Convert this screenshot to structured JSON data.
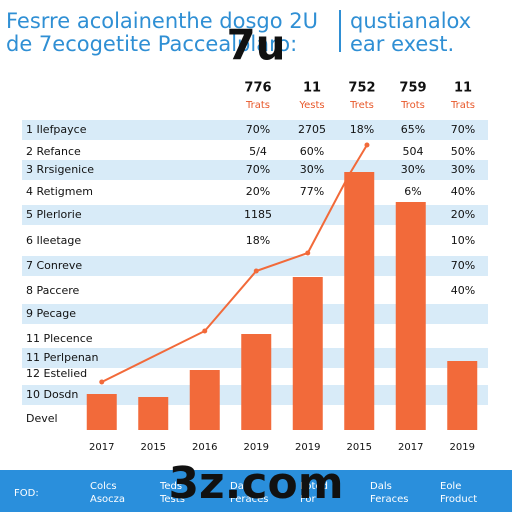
{
  "header": {
    "line1": [
      "Fesrre acolainenthe dosgo 2U",
      "qustianalox"
    ],
    "line2": [
      "de 7ecogetite Paccealplaro:",
      "ear exest."
    ],
    "badge": "7u"
  },
  "table": {
    "columns": [
      "776",
      "11",
      "752",
      "759",
      "11"
    ],
    "subcolumns": [
      "Trats",
      "Yests",
      "Trets",
      "Trots",
      "Trats"
    ],
    "rows": [
      {
        "label": "1  Ilefpayce",
        "cells": [
          "70%",
          "2705",
          "18%",
          "65%",
          "70%"
        ]
      },
      {
        "label": "2  Refance",
        "cells": [
          "5/4",
          "60%",
          null,
          "504",
          "50%"
        ]
      },
      {
        "label": "3  Rrsigenice",
        "cells": [
          "70%",
          "30%",
          null,
          "30%",
          "30%"
        ]
      },
      {
        "label": "4  Retigmem",
        "cells": [
          "20%",
          "77%",
          null,
          "6%",
          "40%"
        ]
      },
      {
        "label": "5  Plerlorie",
        "cells": [
          "1185",
          null,
          null,
          null,
          "20%"
        ]
      },
      {
        "label": "6  Ileetage",
        "cells": [
          "18%",
          null,
          null,
          null,
          "10%"
        ]
      },
      {
        "label": "7  Conreve",
        "cells": [
          null,
          null,
          null,
          null,
          "70%"
        ]
      },
      {
        "label": "8  Paccere",
        "cells": [
          null,
          null,
          null,
          null,
          "40%"
        ]
      },
      {
        "label": "9  Pecage",
        "cells": [
          null,
          null,
          null,
          null,
          null
        ]
      },
      {
        "label": "11  Plecence",
        "cells": [
          null,
          null,
          null,
          null,
          null
        ]
      },
      {
        "label": "11  Perlpenan",
        "cells": [
          null,
          null,
          null,
          null,
          null
        ]
      },
      {
        "label": "12  Estelied",
        "cells": [
          null,
          null,
          null,
          null,
          null
        ]
      },
      {
        "label": "10  Dosdn",
        "cells": [
          null,
          null,
          null,
          null,
          null
        ]
      },
      {
        "label": "Devel",
        "cells": [
          null,
          null,
          null,
          null,
          null
        ]
      }
    ]
  },
  "chart_data": {
    "type": "bar",
    "categories": [
      "2017",
      "2015",
      "2016",
      "2019",
      "2019",
      "2015",
      "2017",
      "2019"
    ],
    "values": [
      12,
      11,
      20,
      32,
      51,
      86,
      76,
      23
    ],
    "color": "#f26a3a",
    "ylim": [
      0,
      100
    ],
    "line": {
      "x": [
        0.5,
        2.5,
        3.5,
        4.5,
        5.3,
        5.65
      ],
      "values": [
        16,
        33,
        53,
        59,
        85,
        95
      ],
      "color": "#f26a3a"
    },
    "xlim": [
      0,
      8
    ]
  },
  "footer": {
    "label": "FOD:",
    "items": [
      [
        "Colcs",
        "Asocza"
      ],
      [
        "Teds",
        "Tests"
      ],
      [
        "Dals",
        "Feraces"
      ],
      [
        "Loted",
        "For"
      ],
      [
        "Dals",
        "Feraces"
      ],
      [
        "Eole",
        "Froduct"
      ]
    ]
  },
  "watermark": "3z.com"
}
